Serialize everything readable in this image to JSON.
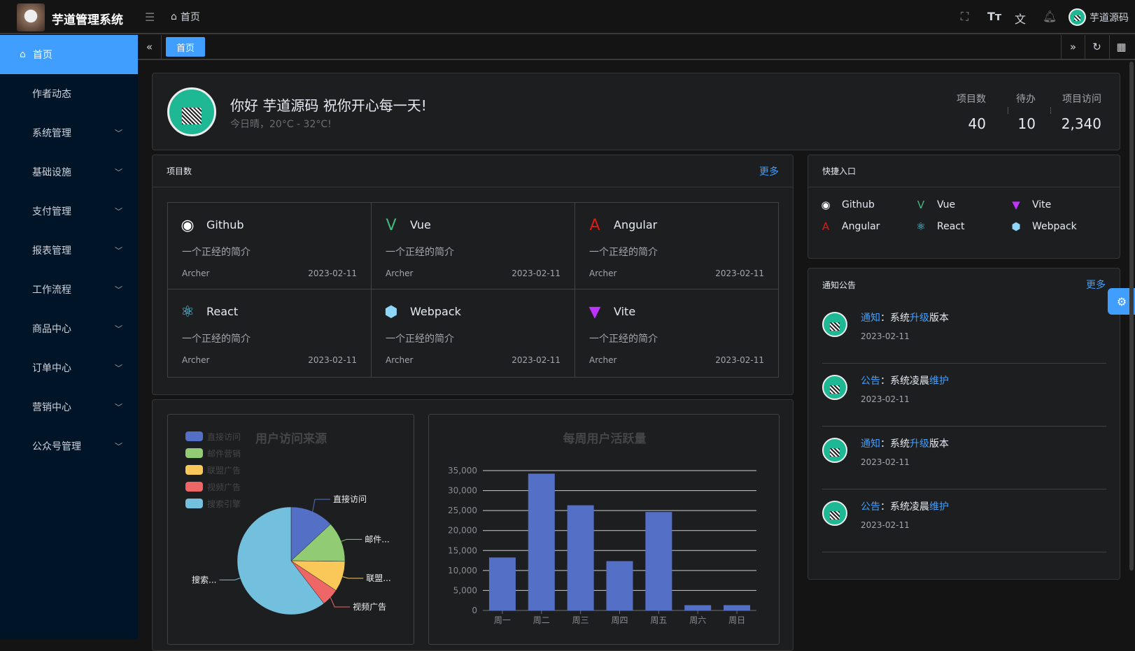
{
  "header": {
    "app_title": "芋道管理系统",
    "breadcrumb": "首页",
    "username": "芋道源码",
    "icons": [
      "menu-fold-icon",
      "home-icon",
      "fullscreen-icon",
      "font-size-icon",
      "translate-icon",
      "bell-icon"
    ]
  },
  "sidebar": {
    "items": [
      {
        "label": "首页",
        "active": true
      },
      {
        "label": "作者动态"
      },
      {
        "label": "系统管理",
        "expandable": true
      },
      {
        "label": "基础设施",
        "expandable": true
      },
      {
        "label": "支付管理",
        "expandable": true
      },
      {
        "label": "报表管理",
        "expandable": true
      },
      {
        "label": "工作流程",
        "expandable": true
      },
      {
        "label": "商品中心",
        "expandable": true
      },
      {
        "label": "订单中心",
        "expandable": true
      },
      {
        "label": "营销中心",
        "expandable": true
      },
      {
        "label": "公众号管理",
        "expandable": true
      }
    ]
  },
  "tabs": {
    "items": [
      "首页"
    ]
  },
  "welcome": {
    "greeting": "你好 芋道源码 祝你开心每一天!",
    "weather": "今日晴，20°C - 32°C!",
    "stats": [
      {
        "label": "项目数",
        "value": "40"
      },
      {
        "label": "待办",
        "value": "10"
      },
      {
        "label": "项目访问",
        "value": "2,340"
      }
    ]
  },
  "projects": {
    "title": "项目数",
    "more": "更多",
    "items": [
      {
        "name": "Github",
        "desc": "一个正经的简介",
        "author": "Archer",
        "date": "2023-02-11",
        "icon": "github-icon",
        "color": "#ffffff"
      },
      {
        "name": "Vue",
        "desc": "一个正经的简介",
        "author": "Archer",
        "date": "2023-02-11",
        "icon": "vue-icon",
        "color": "#42b883"
      },
      {
        "name": "Angular",
        "desc": "一个正经的简介",
        "author": "Archer",
        "date": "2023-02-11",
        "icon": "angular-icon",
        "color": "#dd1b16"
      },
      {
        "name": "React",
        "desc": "一个正经的简介",
        "author": "Archer",
        "date": "2023-02-11",
        "icon": "react-icon",
        "color": "#61dafb"
      },
      {
        "name": "Webpack",
        "desc": "一个正经的简介",
        "author": "Archer",
        "date": "2023-02-11",
        "icon": "webpack-icon",
        "color": "#8ed6fb"
      },
      {
        "name": "Vite",
        "desc": "一个正经的简介",
        "author": "Archer",
        "date": "2023-02-11",
        "icon": "vite-icon",
        "color": "#bd34fe"
      }
    ]
  },
  "shortcuts": {
    "title": "快捷入口",
    "items": [
      "Github",
      "Vue",
      "Vite",
      "Angular",
      "React",
      "Webpack"
    ]
  },
  "notices": {
    "title": "通知公告",
    "more": "更多",
    "items": [
      {
        "type": "通知",
        "pre": "：系统",
        "hl": "升级",
        "post": "版本",
        "date": "2023-02-11"
      },
      {
        "type": "公告",
        "pre": "：系统凌晨",
        "hl": "维护",
        "post": "",
        "date": "2023-02-11"
      },
      {
        "type": "通知",
        "pre": "：系统",
        "hl": "升级",
        "post": "版本",
        "date": "2023-02-11"
      },
      {
        "type": "公告",
        "pre": "：系统凌晨",
        "hl": "维护",
        "post": "",
        "date": "2023-02-11"
      }
    ]
  },
  "chart_data": [
    {
      "type": "pie",
      "title": "用户访问来源",
      "legend_position": "top-left",
      "categories": [
        "直接访问",
        "邮件营销",
        "联盟广告",
        "视频广告",
        "搜索引擎"
      ],
      "slice_labels": [
        "直接访问",
        "邮件...",
        "联盟...",
        "视频广告",
        "搜索..."
      ],
      "values": [
        335,
        310,
        234,
        135,
        1548
      ],
      "colors": [
        "#5470c6",
        "#91cc75",
        "#fac858",
        "#ee6666",
        "#73c0de"
      ]
    },
    {
      "type": "bar",
      "title": "每周用户活跃量",
      "categories": [
        "周一",
        "周二",
        "周三",
        "周四",
        "周五",
        "周六",
        "周日"
      ],
      "values": [
        13253,
        34235,
        26321,
        12340,
        24643,
        1322,
        1324
      ],
      "ylim": [
        0,
        35000
      ],
      "yticks": [
        "0",
        "5,000",
        "10,000",
        "15,000",
        "20,000",
        "25,000",
        "30,000",
        "35,000"
      ],
      "grid": true,
      "color": "#5470c6"
    }
  ]
}
